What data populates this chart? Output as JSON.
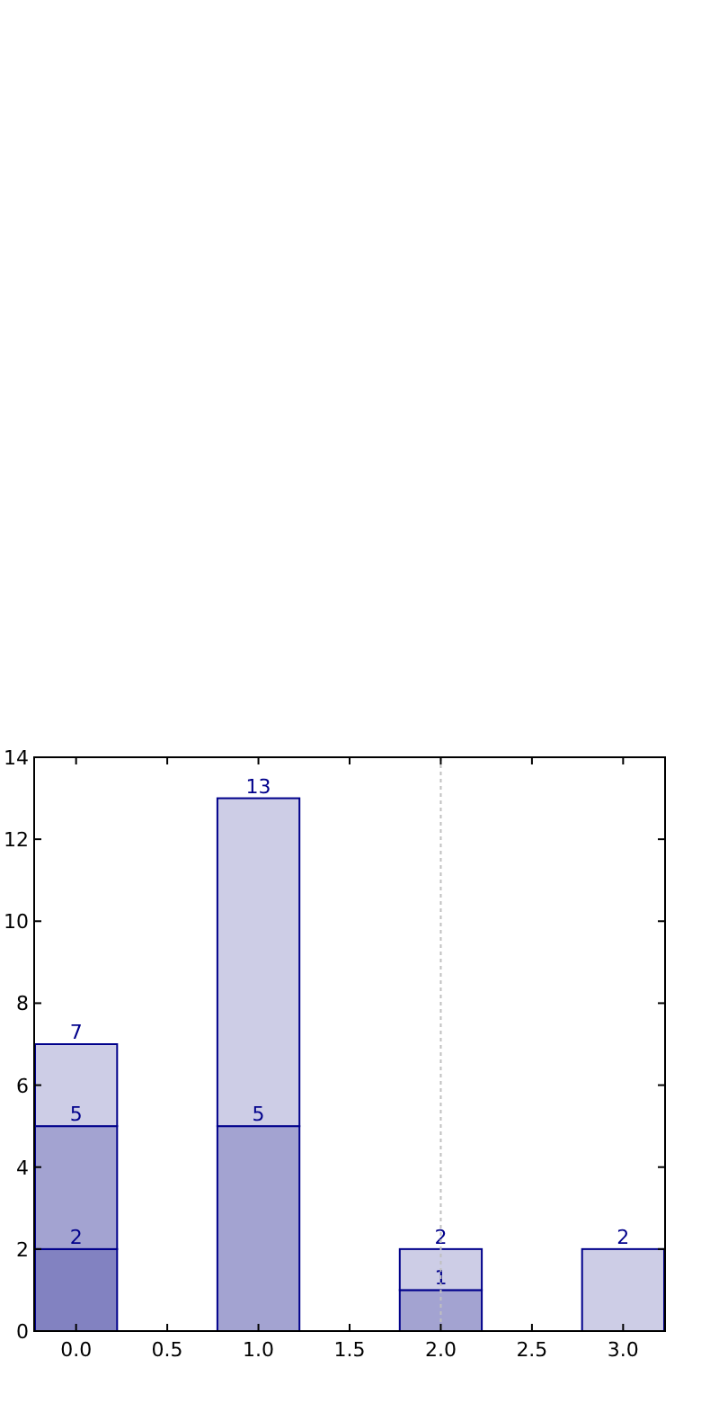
{
  "chart_data": {
    "type": "bar",
    "x": [
      0,
      1,
      2,
      3
    ],
    "stacked": true,
    "series": [
      {
        "color": "#8282c1",
        "values": [
          2,
          null,
          null,
          null
        ]
      },
      {
        "color": "#a3a3d1",
        "values": [
          3,
          5,
          1,
          null
        ]
      },
      {
        "color": "#cdcde6",
        "values": [
          2,
          8,
          1,
          2
        ]
      }
    ],
    "annotations": [
      {
        "text": "2",
        "x": 0,
        "y": 2
      },
      {
        "text": "5",
        "x": 0,
        "y": 5
      },
      {
        "text": "7",
        "x": 0,
        "y": 7
      },
      {
        "text": "5",
        "x": 1,
        "y": 5
      },
      {
        "text": "13",
        "x": 1,
        "y": 13
      },
      {
        "text": "1",
        "x": 2,
        "y": 1
      },
      {
        "text": "2",
        "x": 2,
        "y": 2
      },
      {
        "text": "2",
        "x": 3,
        "y": 2
      }
    ],
    "xlim": [
      -0.23,
      3.23
    ],
    "xticks": [
      {
        "value": 0,
        "label": "0.0"
      },
      {
        "value": 0.5,
        "label": "0.5"
      },
      {
        "value": 1,
        "label": "1.0"
      },
      {
        "value": 1.5,
        "label": "1.5"
      },
      {
        "value": 2,
        "label": "2.0"
      },
      {
        "value": 2.5,
        "label": "2.5"
      },
      {
        "value": 3,
        "label": "3.0"
      }
    ],
    "ylim": [
      0,
      14
    ],
    "yticks": [
      0,
      2,
      4,
      6,
      8,
      10,
      12,
      14
    ],
    "ref_lines": [
      {
        "axis": "x",
        "value": 2,
        "color": "#c0c0c0",
        "line_style": "dotted"
      }
    ]
  }
}
